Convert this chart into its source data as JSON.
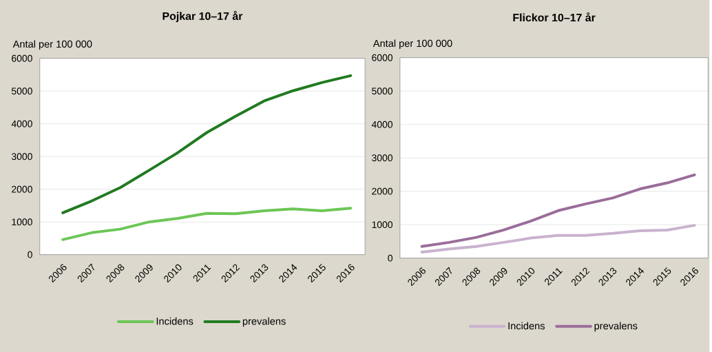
{
  "chart_data": [
    {
      "type": "line",
      "title": "Pojkar 10–17 år",
      "ylabel": "Antal per 100 000",
      "categories": [
        "2006",
        "2007",
        "2008",
        "2009",
        "2010",
        "2011",
        "2012",
        "2013",
        "2014",
        "2015",
        "2016"
      ],
      "series": [
        {
          "name": "Incidens",
          "color": "#6cc656",
          "values": [
            460,
            670,
            780,
            1000,
            1110,
            1260,
            1250,
            1340,
            1400,
            1340,
            1420
          ]
        },
        {
          "name": "prevalens",
          "color": "#217a21",
          "values": [
            1280,
            1640,
            2050,
            2580,
            3120,
            3730,
            4230,
            4700,
            5010,
            5260,
            5470
          ]
        }
      ],
      "ylim": [
        0,
        6000
      ],
      "yticks": [
        0,
        1000,
        2000,
        3000,
        4000,
        5000,
        6000
      ],
      "grid": "y",
      "legend": "bottom",
      "marker": "none",
      "line_style": "solid"
    },
    {
      "type": "line",
      "title": "Flickor 10–17 år",
      "ylabel": "Antal per 100 000",
      "categories": [
        "2006",
        "2007",
        "2008",
        "2009",
        "2010",
        "2011",
        "2012",
        "2013",
        "2014",
        "2015",
        "2016"
      ],
      "series": [
        {
          "name": "Incidens",
          "color": "#c9b2cf",
          "values": [
            180,
            270,
            350,
            470,
            600,
            680,
            680,
            740,
            820,
            840,
            980
          ]
        },
        {
          "name": "prevalens",
          "color": "#9a6d9a",
          "values": [
            350,
            470,
            620,
            840,
            1110,
            1420,
            1620,
            1800,
            2070,
            2250,
            2490
          ]
        }
      ],
      "ylim": [
        0,
        6000
      ],
      "yticks": [
        0,
        1000,
        2000,
        3000,
        4000,
        5000,
        6000
      ],
      "grid": "y",
      "legend": "bottom",
      "marker": "none",
      "line_style": "solid"
    }
  ]
}
